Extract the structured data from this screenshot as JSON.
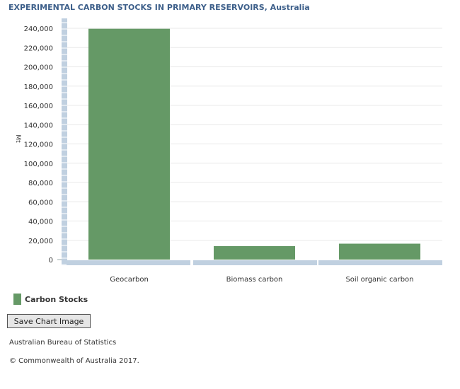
{
  "chart_data": {
    "type": "bar",
    "title": "EXPERIMENTAL CARBON STOCKS IN PRIMARY RESERVOIRS, Australia",
    "ylabel": "Mt",
    "xlabel": "",
    "categories": [
      "Geocarbon",
      "Biomass carbon",
      "Soil organic carbon"
    ],
    "series": [
      {
        "name": "Carbon Stocks",
        "values": [
          239500,
          14000,
          16500
        ]
      }
    ],
    "ylim": [
      0,
      250000
    ],
    "yticks": [
      0,
      20000,
      40000,
      60000,
      80000,
      100000,
      120000,
      140000,
      160000,
      180000,
      200000,
      220000,
      240000
    ],
    "ytick_labels": [
      "0",
      "20,000",
      "40,000",
      "60,000",
      "80,000",
      "100,000",
      "120,000",
      "140,000",
      "160,000",
      "180,000",
      "200,000",
      "220,000",
      "240,000"
    ],
    "grid": true,
    "legend": "bottom-left",
    "colors": {
      "bar": "#659966",
      "axis": "#c0d0e0",
      "grid": "#e8e8e8",
      "title": "#3d5f8a"
    }
  },
  "buttons": {
    "save_label": "Save Chart Image"
  },
  "footer": {
    "source": "Australian Bureau of Statistics",
    "copyright": "© Commonwealth of Australia 2017."
  }
}
